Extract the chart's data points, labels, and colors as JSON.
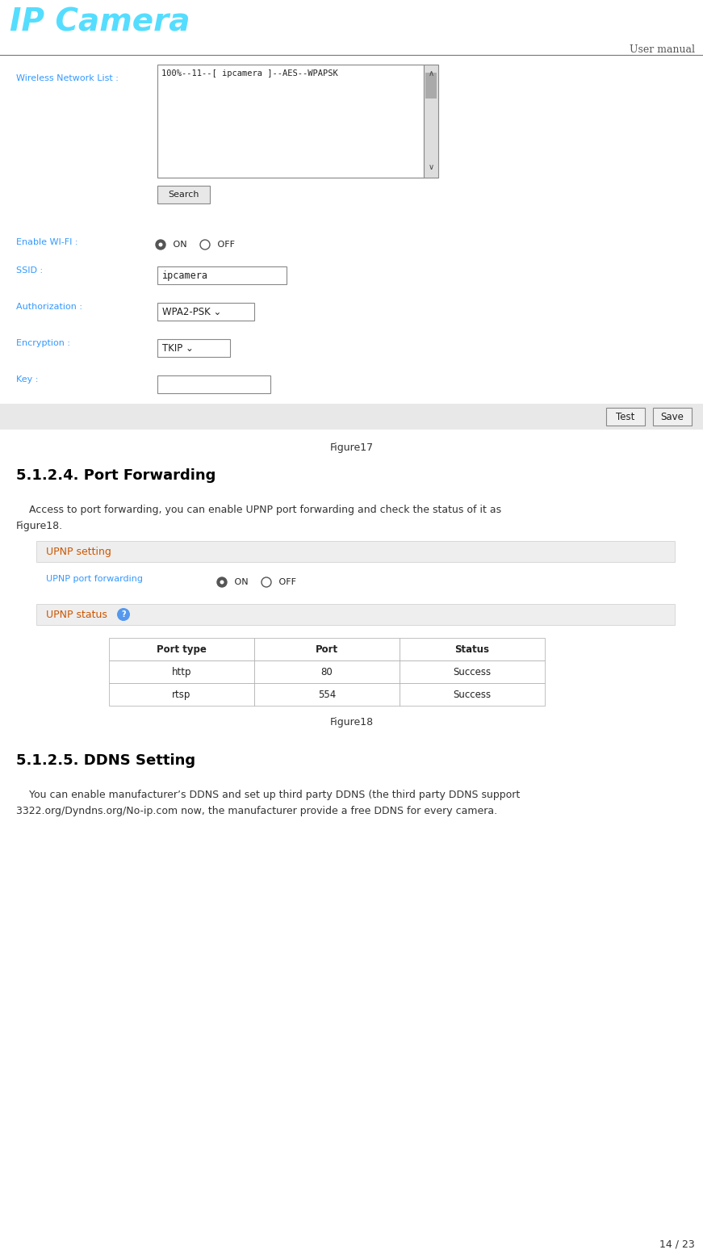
{
  "page_width": 8.71,
  "page_height": 15.58,
  "dpi": 100,
  "bg_color": "#ffffff",
  "logo_text": "IP Camera",
  "logo_color": "#55ddff",
  "user_manual_text": "User manual",
  "page_number": "14 / 23",
  "figure17_caption": "Figure17",
  "section_title": "5.1.2.4. Port Forwarding",
  "section_body_line1": "    Access to port forwarding, you can enable UPNP port forwarding and check the status of it as",
  "section_body_line2": "Figure18.",
  "upnp_setting_label": "UPNP setting",
  "upnp_port_fwd_label": "UPNP port forwarding",
  "upnp_status_label": "UPNP status",
  "table_headers": [
    "Port type",
    "Port",
    "Status"
  ],
  "table_rows": [
    [
      "http",
      "80",
      "Success"
    ],
    [
      "rtsp",
      "554",
      "Success"
    ]
  ],
  "figure18_caption": "Figure18",
  "section2_title": "5.1.2.5. DDNS Setting",
  "section2_body_line1": "    You can enable manufacturer’s DDNS and set up third party DDNS (the third party DDNS support",
  "section2_body_line2": "3322.org/Dyndns.org/No-ip.com now, the manufacturer provide a free DDNS for every camera.",
  "blue_label_color": "#3399ff",
  "orange_label_color": "#cc5500",
  "wifi_listbox_text": "100%--11--[ ipcamera ]--AES--WPAPSK",
  "enable_wifi_label": "Enable WI-FI :",
  "ssid_label": "SSID :",
  "ssid_value": "ipcamera",
  "auth_label": "Authorization :",
  "auth_value": "WPA2-PSK ⌄",
  "enc_label": "Encryption :",
  "enc_value": "TKIP ⌄",
  "key_label": "Key :",
  "wireless_label": "Wireless Network List :"
}
